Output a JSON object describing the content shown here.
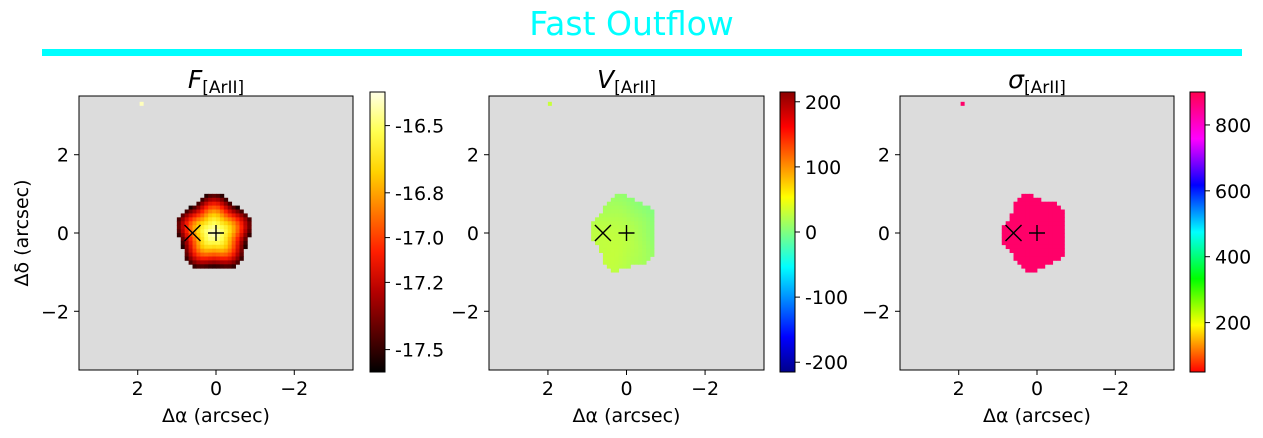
{
  "figure": {
    "suptitle": "Fast Outflow",
    "accent_color": "#00ffff",
    "map_background_color": "#dcdcdc",
    "tick_values": [
      2,
      0,
      -2
    ],
    "tick_labels": [
      "2",
      "0",
      "−2"
    ],
    "x_label": "Δα (arcsec)",
    "y_label": "Δδ (arcsec)",
    "xlim": [
      3.5,
      -3.5
    ],
    "ylim": [
      -3.5,
      3.5
    ],
    "markers": {
      "cross_x": {
        "x": 0.6,
        "y": 0.0,
        "symbol": "x"
      },
      "plus": {
        "x": 0.0,
        "y": 0.0,
        "symbol": "+"
      }
    }
  },
  "chart_data": [
    {
      "type": "heatmap",
      "title_main": "F",
      "title_sub": "[ArII]",
      "title_style": "italic",
      "xlabel": "Δα (arcsec)",
      "ylabel": "Δδ (arcsec)",
      "xlim": [
        3.5,
        -3.5
      ],
      "ylim": [
        -3.5,
        3.5
      ],
      "colormap": "hot",
      "colorbar": {
        "vmin": -17.6,
        "vmax": -16.35,
        "ticks": [
          -16.5,
          -16.8,
          -17.0,
          -17.2,
          -17.5
        ],
        "tick_labels": [
          "-16.5",
          "-16.8",
          "-17.0",
          "-17.2",
          "-17.5"
        ],
        "colors": [
          "#000000",
          "#5a0000",
          "#b40000",
          "#ff1e00",
          "#ff7800",
          "#ffd200",
          "#ffff50",
          "#ffffe6"
        ]
      },
      "blob": {
        "center": [
          0.05,
          0.0
        ],
        "radius_x": 0.95,
        "radius_y": 0.95,
        "value_center": -16.4,
        "value_edge": -17.55
      },
      "isolated_pixel": {
        "x": 1.9,
        "y": 3.3,
        "value": -16.4
      }
    },
    {
      "type": "heatmap",
      "title_main": "V",
      "title_sub": "[ArII]",
      "title_style": "italic",
      "xlabel": "Δα (arcsec)",
      "ylabel": "",
      "xlim": [
        3.5,
        -3.5
      ],
      "ylim": [
        -3.5,
        3.5
      ],
      "colormap": "jet",
      "colorbar": {
        "vmin": -215,
        "vmax": 215,
        "ticks": [
          200,
          100,
          0,
          -100,
          -200
        ],
        "tick_labels": [
          "200",
          "100",
          "0",
          "-100",
          "-200"
        ],
        "colors": [
          "#00008b",
          "#0000ff",
          "#0080ff",
          "#00ffff",
          "#80ff80",
          "#ffff00",
          "#ff8000",
          "#ff0000",
          "#8b0000"
        ]
      },
      "blob": {
        "center": [
          0.05,
          0.0
        ],
        "radius_x": 0.8,
        "radius_y": 0.95,
        "value_center": 25,
        "value_edge": 15
      },
      "isolated_pixel": {
        "x": 1.95,
        "y": 3.3,
        "value": 30
      }
    },
    {
      "type": "heatmap",
      "title_main": "σ",
      "title_sub": "[ArII]",
      "title_style": "italic",
      "xlabel": "Δα (arcsec)",
      "ylabel": "",
      "xlim": [
        3.5,
        -3.5
      ],
      "ylim": [
        -3.5,
        3.5
      ],
      "colormap": "gist_rainbow_r",
      "colorbar": {
        "vmin": 50,
        "vmax": 900,
        "ticks": [
          800,
          600,
          400,
          200
        ],
        "tick_labels": [
          "800",
          "600",
          "400",
          "200"
        ],
        "colors": [
          "#ff0000",
          "#ffff00",
          "#00ff00",
          "#00ffff",
          "#0000ff",
          "#ff00ff",
          "#ff0050"
        ]
      },
      "blob": {
        "center": [
          0.05,
          0.0
        ],
        "radius_x": 0.8,
        "radius_y": 0.95,
        "value_center": 880,
        "value_edge": 880
      },
      "isolated_pixel": {
        "x": 1.9,
        "y": 3.3,
        "value": 880
      }
    }
  ]
}
